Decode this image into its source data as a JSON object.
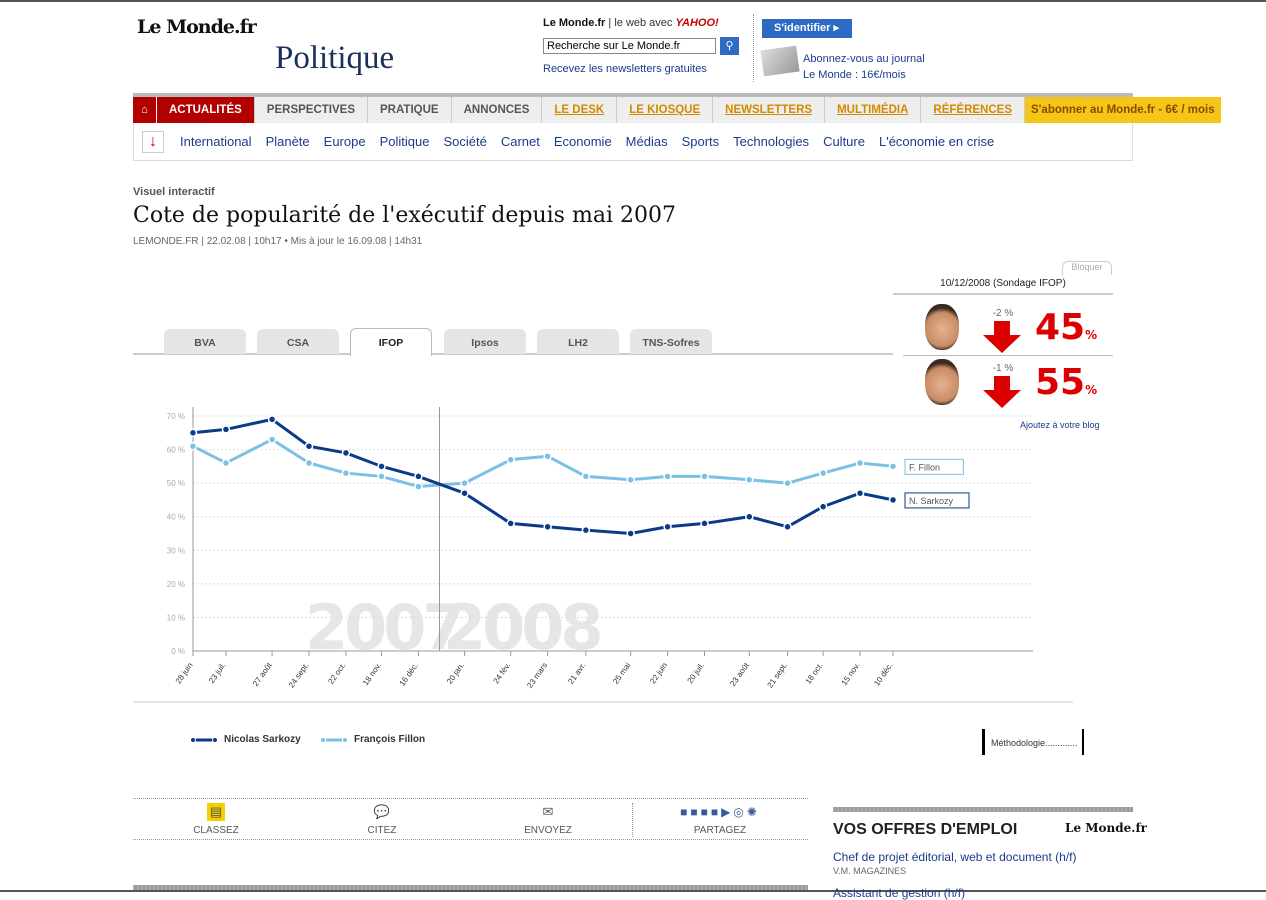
{
  "header": {
    "logo": "Le Monde.fr",
    "section": "Politique",
    "brand": "Le Monde.fr",
    "web_avec": "le web avec",
    "yahoo": "YAHOO!",
    "search_value": "Recherche sur Le Monde.fr",
    "newsletters": "Recevez les newsletters gratuites",
    "login": "S'identifier",
    "abo_line1": "Abonnez-vous au journal",
    "abo_line2": "Le Monde : 16€/mois"
  },
  "nav": {
    "items": [
      "ACTUALITÉS",
      "PERSPECTIVES",
      "PRATIQUE",
      "ANNONCES",
      "LE DESK",
      "LE KIOSQUE",
      "NEWSLETTERS",
      "MULTIMÉDIA",
      "RÉFÉRENCES"
    ],
    "subscribe": "S'abonner au Monde.fr - 6€ / mois"
  },
  "subnav": [
    "International",
    "Planète",
    "Europe",
    "Politique",
    "Société",
    "Carnet",
    "Economie",
    "Médias",
    "Sports",
    "Technologies",
    "Culture",
    "L'économie en crise"
  ],
  "article": {
    "kicker": "Visuel interactif",
    "title": "Cote de popularité de l'exécutif depuis mai 2007",
    "meta": "LEMONDE.FR | 22.02.08 | 10h17  •  Mis à jour le 16.09.08 | 14h31"
  },
  "tabs": [
    {
      "label": "BVA"
    },
    {
      "label": "CSA"
    },
    {
      "label": "IFOP",
      "active": true
    },
    {
      "label": "Ipsos"
    },
    {
      "label": "LH2"
    },
    {
      "label": "TNS-Sofres"
    }
  ],
  "panel": {
    "block": "Bloquer",
    "date": "10/12/2008 (Sondage IFOP)",
    "rows": [
      {
        "delta": "-2 %",
        "value": "45",
        "unit": "%"
      },
      {
        "delta": "-1 %",
        "value": "55",
        "unit": "%"
      }
    ],
    "blog": "Ajoutez à votre blog"
  },
  "chart_data": {
    "type": "line",
    "ylim": [
      0,
      70
    ],
    "yticks": [
      "0 %",
      "10 %",
      "20 %",
      "30 %",
      "40 %",
      "50 %",
      "60 %",
      "70 %"
    ],
    "grid": true,
    "watermarks": [
      "2007",
      "2008"
    ],
    "categories": [
      "28 juin",
      "23 juil.",
      "27 août",
      "24 sept.",
      "22 oct.",
      "18 nov.",
      "16 déc.",
      "20 jan.",
      "24 fév.",
      "23 mars",
      "21 avr.",
      "25 mai",
      "22 juin",
      "20 juil.",
      "23 août",
      "21 sept.",
      "18 oct.",
      "15 nov.",
      "10 déc."
    ],
    "series": [
      {
        "name": "Nicolas Sarkozy",
        "end_label": "N. Sarkozy",
        "color": "#0a3a8a",
        "values": [
          65,
          66,
          69,
          61,
          59,
          55,
          52,
          47,
          38,
          37,
          36,
          35,
          37,
          38,
          40,
          37,
          43,
          47,
          45
        ]
      },
      {
        "name": "François Fillon",
        "end_label": "F. Fillon",
        "color": "#7cc0e6",
        "values": [
          61,
          56,
          63,
          56,
          53,
          52,
          49,
          50,
          57,
          58,
          52,
          51,
          52,
          52,
          51,
          50,
          53,
          56,
          55
        ]
      }
    ],
    "legend_position": "bottom-left"
  },
  "methodo": "Méthodologie.............",
  "tools": {
    "classez": "CLASSEZ",
    "citez": "CITEZ",
    "envoyez": "ENVOYEZ",
    "partagez": "PARTAGEZ"
  },
  "emploi": {
    "title": "VOS OFFRES D'EMPLOI",
    "logo": "Le Monde.fr",
    "job": "Chef de projet éditorial, web et document (h/f)",
    "company": "V.M. MAGAZINES",
    "job2": "Assistant de gestion (h/f)"
  },
  "colors": {
    "red": "#b20000",
    "accent_yellow": "#f5c518",
    "link": "#1a3c8a"
  }
}
